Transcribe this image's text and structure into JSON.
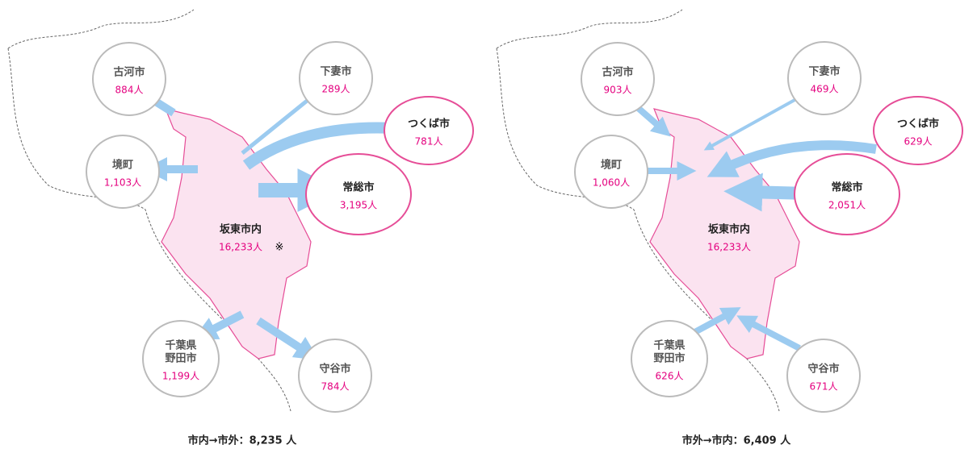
{
  "panels": [
    {
      "caption": "市内→市外：8,235 人",
      "center": {
        "name": "坂東市内",
        "count": "16,233人",
        "note": "※"
      },
      "cities": [
        {
          "name_lines": [
            "古河市"
          ],
          "count": "884人"
        },
        {
          "name_lines": [
            "下妻市"
          ],
          "count": "289人"
        },
        {
          "name_lines": [
            "つくば市"
          ],
          "count": "781人"
        },
        {
          "name_lines": [
            "境町"
          ],
          "count": "1,103人"
        },
        {
          "name_lines": [
            "常総市"
          ],
          "count": "3,195人"
        },
        {
          "name_lines": [
            "千葉県",
            "野田市"
          ],
          "count": "1,199人"
        },
        {
          "name_lines": [
            "守谷市"
          ],
          "count": "784人"
        }
      ]
    },
    {
      "caption": "市外→市内：6,409 人",
      "center": {
        "name": "坂東市内",
        "count": "16,233人"
      },
      "cities": [
        {
          "name_lines": [
            "古河市"
          ],
          "count": "903人"
        },
        {
          "name_lines": [
            "下妻市"
          ],
          "count": "469人"
        },
        {
          "name_lines": [
            "つくば市"
          ],
          "count": "629人"
        },
        {
          "name_lines": [
            "境町"
          ],
          "count": "1,060人"
        },
        {
          "name_lines": [
            "常総市"
          ],
          "count": "2,051人"
        },
        {
          "name_lines": [
            "千葉県",
            "野田市"
          ],
          "count": "626人"
        },
        {
          "name_lines": [
            "守谷市"
          ],
          "count": "671人"
        }
      ]
    }
  ]
}
